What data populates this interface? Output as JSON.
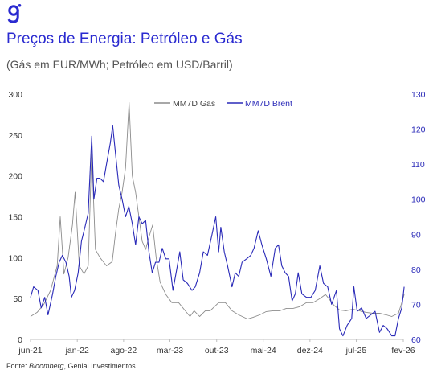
{
  "logo": {
    "icon": "genial-g-logo-icon",
    "color": "#2a2ad0"
  },
  "header": {
    "title": "Preços de Energia: Petróleo e Gás",
    "subtitle": "(Gás em EUR/MWh; Petróleo em USD/Barril)"
  },
  "footer": {
    "source_prefix": "Fonte: ",
    "source_name": "Bloomberg",
    "source_suffix": ", Genial Investimentos"
  },
  "chart_data": {
    "type": "line",
    "title": "Preços de Energia: Petróleo e Gás",
    "subtitle": "(Gás em EUR/MWh; Petróleo em USD/Barril)",
    "x_tick_labels": [
      "jun-21",
      "jan-22",
      "ago-22",
      "mar-23",
      "out-23",
      "mai-24",
      "dez-24",
      "jul-25",
      "fev-26"
    ],
    "x_tick_dates": [
      "2021-06",
      "2022-01",
      "2022-08",
      "2023-03",
      "2023-10",
      "2024-05",
      "2024-12",
      "2025-07",
      "2026-02"
    ],
    "xlim": [
      "2021-06",
      "2026-02"
    ],
    "y_left": {
      "lim": [
        0,
        300
      ],
      "ticks": [
        0,
        50,
        100,
        150,
        200,
        250,
        300
      ]
    },
    "y_right": {
      "lim": [
        60,
        130
      ],
      "ticks": [
        60,
        70,
        80,
        90,
        100,
        110,
        120,
        130
      ]
    },
    "grid": false,
    "legend": {
      "placement": "top-center"
    },
    "series": [
      {
        "name": "MM7D Gas",
        "axis": "left",
        "color": "#8c8c8c",
        "points": [
          [
            "2021-06-01",
            28
          ],
          [
            "2021-07-01",
            33
          ],
          [
            "2021-08-01",
            43
          ],
          [
            "2021-09-01",
            60
          ],
          [
            "2021-10-01",
            90
          ],
          [
            "2021-10-15",
            150
          ],
          [
            "2021-11-01",
            80
          ],
          [
            "2021-11-20",
            100
          ],
          [
            "2021-12-10",
            140
          ],
          [
            "2021-12-22",
            180
          ],
          [
            "2022-01-10",
            90
          ],
          [
            "2022-02-01",
            80
          ],
          [
            "2022-02-20",
            90
          ],
          [
            "2022-03-08",
            230
          ],
          [
            "2022-03-25",
            110
          ],
          [
            "2022-04-15",
            100
          ],
          [
            "2022-05-15",
            90
          ],
          [
            "2022-06-10",
            95
          ],
          [
            "2022-06-25",
            130
          ],
          [
            "2022-07-10",
            160
          ],
          [
            "2022-07-25",
            180
          ],
          [
            "2022-08-10",
            210
          ],
          [
            "2022-08-26",
            290
          ],
          [
            "2022-09-10",
            200
          ],
          [
            "2022-09-25",
            180
          ],
          [
            "2022-10-10",
            150
          ],
          [
            "2022-10-25",
            120
          ],
          [
            "2022-11-10",
            110
          ],
          [
            "2022-11-25",
            125
          ],
          [
            "2022-12-12",
            140
          ],
          [
            "2022-12-28",
            100
          ],
          [
            "2023-01-15",
            70
          ],
          [
            "2023-02-10",
            55
          ],
          [
            "2023-03-10",
            45
          ],
          [
            "2023-04-10",
            45
          ],
          [
            "2023-05-10",
            35
          ],
          [
            "2023-06-01",
            28
          ],
          [
            "2023-06-20",
            35
          ],
          [
            "2023-07-15",
            28
          ],
          [
            "2023-08-10",
            35
          ],
          [
            "2023-09-01",
            35
          ],
          [
            "2023-10-10",
            45
          ],
          [
            "2023-11-10",
            45
          ],
          [
            "2023-12-10",
            35
          ],
          [
            "2024-01-10",
            30
          ],
          [
            "2024-02-20",
            25
          ],
          [
            "2024-03-15",
            27
          ],
          [
            "2024-04-15",
            30
          ],
          [
            "2024-05-15",
            34
          ],
          [
            "2024-06-15",
            35
          ],
          [
            "2024-07-15",
            35
          ],
          [
            "2024-08-15",
            38
          ],
          [
            "2024-09-15",
            38
          ],
          [
            "2024-10-15",
            40
          ],
          [
            "2024-11-15",
            45
          ],
          [
            "2024-12-15",
            45
          ],
          [
            "2025-01-15",
            50
          ],
          [
            "2025-02-10",
            55
          ],
          [
            "2025-02-25",
            50
          ],
          [
            "2025-03-20",
            42
          ],
          [
            "2025-04-15",
            36
          ],
          [
            "2025-05-15",
            35
          ],
          [
            "2025-06-15",
            37
          ],
          [
            "2025-07-15",
            35
          ],
          [
            "2025-08-15",
            33
          ],
          [
            "2025-09-15",
            32
          ],
          [
            "2025-10-15",
            32
          ],
          [
            "2025-11-15",
            30
          ],
          [
            "2025-12-10",
            28
          ],
          [
            "2026-01-10",
            32
          ],
          [
            "2026-01-25",
            45
          ],
          [
            "2026-02-05",
            55
          ]
        ]
      },
      {
        "name": "MM7D Brent",
        "axis": "right",
        "color": "#2a2ab8",
        "points": [
          [
            "2021-06-01",
            72
          ],
          [
            "2021-06-15",
            75
          ],
          [
            "2021-07-05",
            74
          ],
          [
            "2021-07-20",
            69
          ],
          [
            "2021-08-05",
            72
          ],
          [
            "2021-08-20",
            67
          ],
          [
            "2021-09-10",
            73
          ],
          [
            "2021-09-25",
            78
          ],
          [
            "2021-10-10",
            82
          ],
          [
            "2021-10-25",
            84
          ],
          [
            "2021-11-10",
            82
          ],
          [
            "2021-11-25",
            78
          ],
          [
            "2021-12-05",
            72
          ],
          [
            "2021-12-20",
            74
          ],
          [
            "2022-01-05",
            79
          ],
          [
            "2022-01-20",
            88
          ],
          [
            "2022-02-05",
            92
          ],
          [
            "2022-02-20",
            96
          ],
          [
            "2022-03-08",
            118
          ],
          [
            "2022-03-18",
            100
          ],
          [
            "2022-04-01",
            106
          ],
          [
            "2022-04-15",
            106
          ],
          [
            "2022-05-01",
            105
          ],
          [
            "2022-05-15",
            110
          ],
          [
            "2022-06-01",
            116
          ],
          [
            "2022-06-12",
            121
          ],
          [
            "2022-06-25",
            113
          ],
          [
            "2022-07-10",
            104
          ],
          [
            "2022-07-25",
            100
          ],
          [
            "2022-08-10",
            95
          ],
          [
            "2022-08-25",
            98
          ],
          [
            "2022-09-10",
            93
          ],
          [
            "2022-09-25",
            87
          ],
          [
            "2022-10-10",
            95
          ],
          [
            "2022-10-25",
            93
          ],
          [
            "2022-11-10",
            94
          ],
          [
            "2022-11-25",
            85
          ],
          [
            "2022-12-10",
            79
          ],
          [
            "2022-12-25",
            82
          ],
          [
            "2023-01-10",
            82
          ],
          [
            "2023-01-25",
            86
          ],
          [
            "2023-02-10",
            83
          ],
          [
            "2023-02-25",
            83
          ],
          [
            "2023-03-15",
            74
          ],
          [
            "2023-04-01",
            80
          ],
          [
            "2023-04-15",
            85
          ],
          [
            "2023-05-01",
            77
          ],
          [
            "2023-05-20",
            76
          ],
          [
            "2023-06-10",
            74
          ],
          [
            "2023-06-25",
            75
          ],
          [
            "2023-07-15",
            79
          ],
          [
            "2023-08-01",
            85
          ],
          [
            "2023-08-20",
            84
          ],
          [
            "2023-09-10",
            90
          ],
          [
            "2023-09-27",
            95
          ],
          [
            "2023-10-10",
            85
          ],
          [
            "2023-10-20",
            92
          ],
          [
            "2023-11-05",
            85
          ],
          [
            "2023-11-20",
            81
          ],
          [
            "2023-12-10",
            75
          ],
          [
            "2023-12-25",
            79
          ],
          [
            "2024-01-10",
            78
          ],
          [
            "2024-01-25",
            82
          ],
          [
            "2024-02-15",
            83
          ],
          [
            "2024-03-05",
            84
          ],
          [
            "2024-03-20",
            86
          ],
          [
            "2024-04-08",
            91
          ],
          [
            "2024-04-25",
            87
          ],
          [
            "2024-05-15",
            83
          ],
          [
            "2024-06-05",
            78
          ],
          [
            "2024-06-25",
            86
          ],
          [
            "2024-07-10",
            87
          ],
          [
            "2024-07-25",
            81
          ],
          [
            "2024-08-10",
            79
          ],
          [
            "2024-08-25",
            78
          ],
          [
            "2024-09-10",
            71
          ],
          [
            "2024-09-25",
            73
          ],
          [
            "2024-10-08",
            79
          ],
          [
            "2024-10-25",
            73
          ],
          [
            "2024-11-15",
            72
          ],
          [
            "2024-12-05",
            72
          ],
          [
            "2024-12-25",
            74
          ],
          [
            "2025-01-15",
            81
          ],
          [
            "2025-02-01",
            76
          ],
          [
            "2025-02-20",
            75
          ],
          [
            "2025-03-10",
            70
          ],
          [
            "2025-04-01",
            74
          ],
          [
            "2025-04-15",
            63
          ],
          [
            "2025-05-01",
            61
          ],
          [
            "2025-05-20",
            64
          ],
          [
            "2025-06-10",
            66
          ],
          [
            "2025-06-20",
            75
          ],
          [
            "2025-07-05",
            68
          ],
          [
            "2025-07-25",
            69
          ],
          [
            "2025-08-15",
            66
          ],
          [
            "2025-09-05",
            67
          ],
          [
            "2025-09-25",
            68
          ],
          [
            "2025-10-15",
            62
          ],
          [
            "2025-11-01",
            64
          ],
          [
            "2025-11-20",
            63
          ],
          [
            "2025-12-10",
            61
          ],
          [
            "2025-12-25",
            61
          ],
          [
            "2026-01-10",
            66
          ],
          [
            "2026-01-25",
            69
          ],
          [
            "2026-02-05",
            75
          ]
        ]
      }
    ]
  }
}
